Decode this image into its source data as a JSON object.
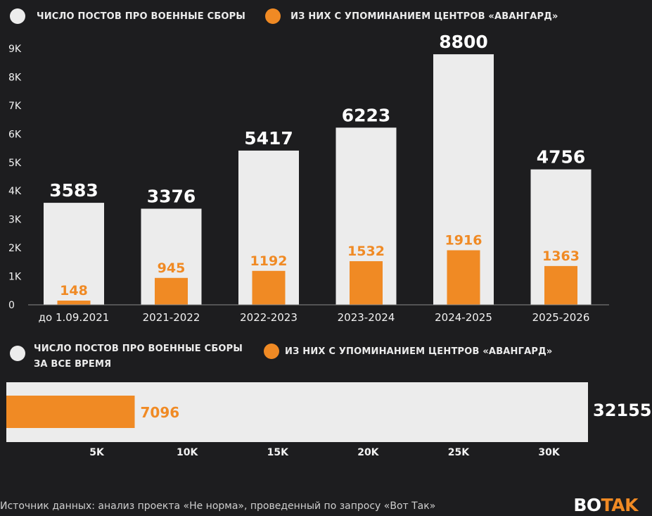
{
  "colors": {
    "total": "#ececec",
    "avangard": "#f08a24",
    "axis_text": "#f2f2f2"
  },
  "legend": {
    "total_label": "ЧИСЛО ПОСТОВ ПРО ВОЕННЫЕ СБОРЫ",
    "avangard_label": "ИЗ НИХ С УПОМИНАНИЕМ ЦЕНТРОВ «АВАНГАРД»"
  },
  "legend2": {
    "total_label_line1": "ЧИСЛО ПОСТОВ ПРО ВОЕННЫЕ СБОРЫ",
    "total_label_line2": "ЗА ВСЕ ВРЕМЯ",
    "avangard_label": "ИЗ НИХ С УПОМИНАНИЕМ ЦЕНТРОВ «АВАНГАРД»"
  },
  "chart_data": [
    {
      "type": "bar",
      "categories": [
        "до 1.09.2021",
        "2021-2022",
        "2022-2023",
        "2023-2024",
        "2024-2025",
        "2025-2026"
      ],
      "series": [
        {
          "name": "ЧИСЛО ПОСТОВ ПРО ВОЕННЫЕ СБОРЫ",
          "values": [
            3583,
            3376,
            5417,
            6223,
            8800,
            4756
          ]
        },
        {
          "name": "ИЗ НИХ С УПОМИНАНИЕМ ЦЕНТРОВ «АВАНГАРД»",
          "values": [
            148,
            945,
            1192,
            1532,
            1916,
            1363
          ]
        }
      ],
      "ylim": [
        0,
        9000
      ],
      "yticks": [
        0,
        1000,
        2000,
        3000,
        4000,
        5000,
        6000,
        7000,
        8000,
        9000
      ],
      "ytick_labels": [
        "0",
        "1K",
        "2K",
        "3K",
        "4K",
        "5K",
        "6K",
        "7K",
        "8K",
        "9K"
      ],
      "legend_position": "top-left"
    },
    {
      "type": "bar",
      "orientation": "horizontal",
      "series": [
        {
          "name": "ЧИСЛО ПОСТОВ ПРО ВОЕННЫЕ СБОРЫ ЗА ВСЕ ВРЕМЯ",
          "values": [
            32155
          ]
        },
        {
          "name": "ИЗ НИХ С УПОМИНАНИЕМ ЦЕНТРОВ «АВАНГАРД»",
          "values": [
            7096
          ]
        }
      ],
      "xlim": [
        0,
        32155
      ],
      "xticks": [
        5000,
        10000,
        15000,
        20000,
        25000,
        30000
      ],
      "xtick_labels": [
        "5K",
        "10K",
        "15K",
        "20K",
        "25K",
        "30K"
      ]
    }
  ],
  "footer": {
    "source": "Источник данных: анализ проекта «Не норма», проведенный по запросу «Вот Так»"
  },
  "brand": {
    "part1": "BO",
    "part2": "TAK"
  }
}
